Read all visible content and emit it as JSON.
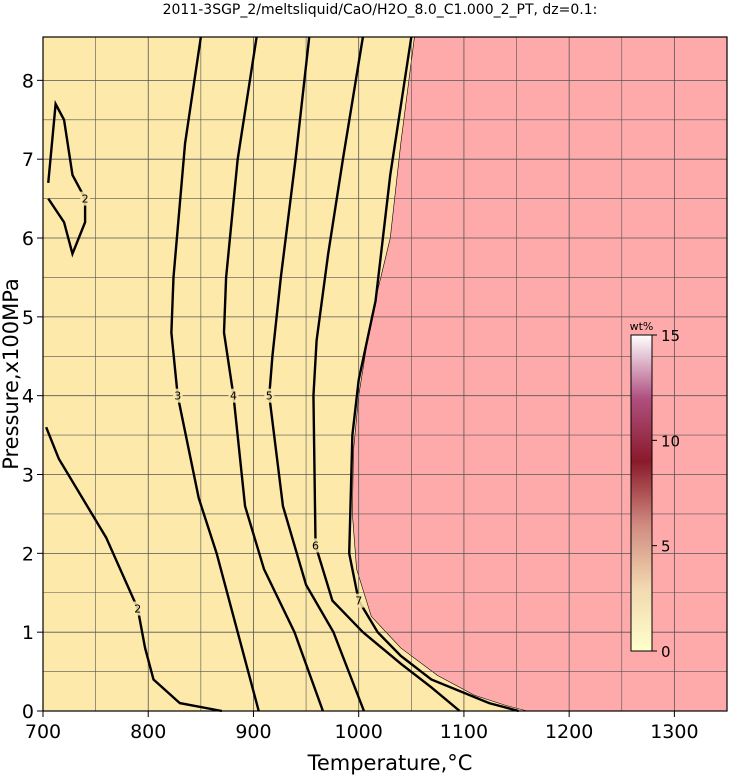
{
  "chart_data": {
    "type": "contour",
    "title": "2011-3SGP_2/meltsliquid/CaO/H2O_8.0_C1.000_2_PT, dz=0.1:",
    "x_label": "Temperature,°C",
    "y_label": "Pressure,x100MPa",
    "xlim": [
      700,
      1350
    ],
    "ylim": [
      0,
      8.55
    ],
    "xticks": [
      700,
      800,
      900,
      1000,
      1100,
      1200,
      1300
    ],
    "yticks": [
      0,
      1,
      2,
      3,
      4,
      5,
      6,
      7,
      8
    ],
    "xminorticks": [
      750,
      850,
      950,
      1050,
      1150,
      1250
    ],
    "yminorticks": [
      0.5,
      1.5,
      2.5,
      3.5,
      4.5,
      5.5,
      6.5,
      7.5
    ],
    "grid": true,
    "background_color": "#fde9aa",
    "melt_region": {
      "color": "#ffaaaa",
      "x": [
        1053,
        1040,
        1030,
        1012,
        1000,
        995,
        994,
        998,
        1012,
        1040,
        1075,
        1110,
        1140,
        1160
      ],
      "y": [
        8.55,
        7.2,
        6.0,
        5.0,
        4.0,
        3.3,
        2.5,
        1.8,
        1.2,
        0.8,
        0.45,
        0.2,
        0.07,
        0
      ]
    },
    "series": [
      {
        "name": "2",
        "x": [
          705,
          712,
          720,
          728,
          740,
          740,
          728,
          720,
          705
        ],
        "y": [
          6.7,
          7.7,
          7.5,
          6.8,
          6.5,
          6.2,
          5.8,
          6.2,
          6.5
        ]
      },
      {
        "name": "2",
        "x": [
          703,
          715,
          733,
          760,
          790,
          797,
          805,
          830,
          870
        ],
        "y": [
          3.6,
          3.2,
          2.8,
          2.2,
          1.3,
          0.8,
          0.4,
          0.1,
          0
        ]
      },
      {
        "name": "3",
        "x": [
          850,
          835,
          824,
          822,
          828,
          848,
          865,
          885,
          905
        ],
        "y": [
          8.55,
          7.2,
          5.5,
          4.8,
          4.0,
          2.7,
          2.0,
          1.0,
          0
        ]
      },
      {
        "name": "4",
        "x": [
          903,
          885,
          874,
          872,
          881,
          892,
          910,
          939,
          966
        ],
        "y": [
          8.55,
          7.0,
          5.5,
          4.8,
          4.0,
          2.6,
          1.8,
          1.0,
          0
        ]
      },
      {
        "name": "5",
        "x": [
          953,
          940,
          926,
          918,
          915,
          928,
          950,
          976,
          1005
        ],
        "y": [
          8.55,
          7.0,
          5.5,
          4.5,
          4.0,
          2.6,
          1.6,
          1.0,
          0
        ]
      },
      {
        "name": "6",
        "x": [
          1004,
          985,
          971,
          960,
          957,
          959,
          975,
          1004,
          1040,
          1069,
          1096
        ],
        "y": [
          8.55,
          7.0,
          5.8,
          4.7,
          4.0,
          2.1,
          1.4,
          1.0,
          0.6,
          0.3,
          0
        ]
      },
      {
        "name": "7",
        "x": [
          1050,
          1030,
          1016,
          1000,
          994,
          991,
          1000,
          1018,
          1040,
          1069,
          1124,
          1152
        ],
        "y": [
          8.55,
          6.8,
          5.2,
          4.2,
          3.5,
          2.0,
          1.4,
          1.0,
          0.7,
          0.4,
          0.1,
          0
        ]
      }
    ],
    "colorbar": {
      "label": "wt%",
      "lim": [
        0,
        15
      ],
      "ticks": [
        0,
        5,
        10,
        15
      ],
      "colors": [
        "#ffffcc",
        "#f2d8b0",
        "#d08a80",
        "#8a1a2a",
        "#b05080",
        "#ffffff"
      ]
    }
  }
}
